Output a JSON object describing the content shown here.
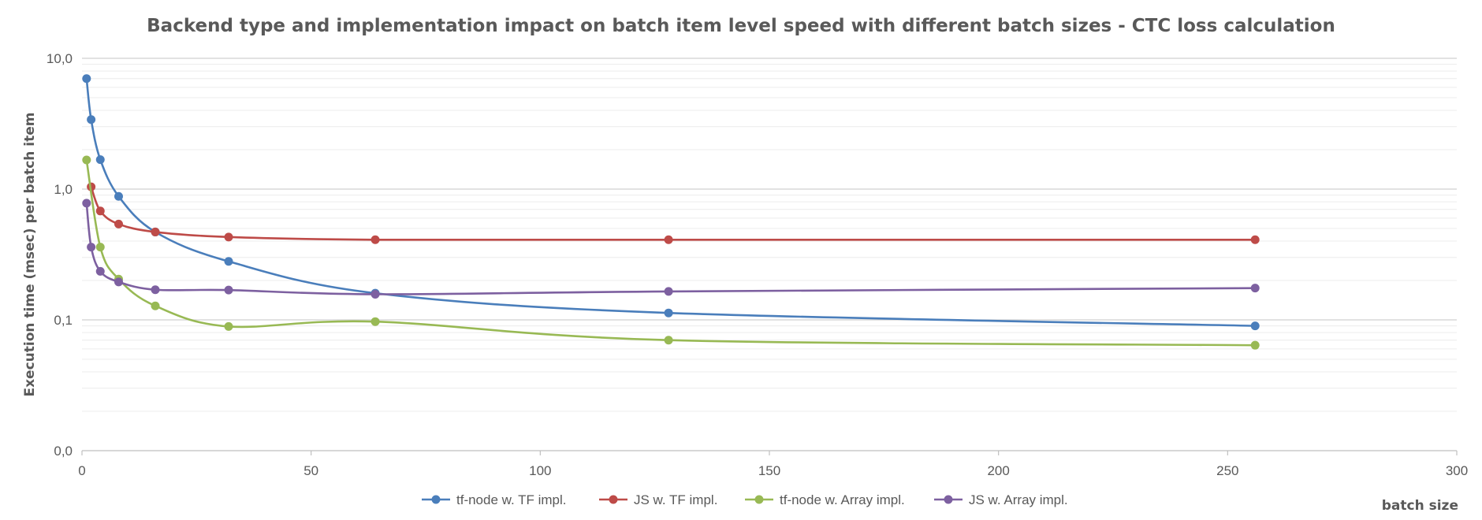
{
  "chart_data": {
    "type": "line",
    "title": "Backend type and implementation impact on batch item level speed with different batch sizes - CTC loss calculation",
    "xlabel": "batch size",
    "ylabel": "Execution time (msec) per batch item",
    "y_scale": "log",
    "xlim": [
      0,
      300
    ],
    "ylim": [
      0.01,
      10
    ],
    "x_ticks": [
      0,
      50,
      100,
      150,
      200,
      250,
      300
    ],
    "x_tick_labels": [
      "0",
      "50",
      "100",
      "150",
      "200",
      "250",
      "300"
    ],
    "y_ticks": [
      0.01,
      0.1,
      1,
      10
    ],
    "y_tick_labels": [
      "0,0",
      "0,1",
      "1,0",
      "10,0"
    ],
    "legend_position": "bottom",
    "smooth": true,
    "series": [
      {
        "name": "tf-node w. TF impl.",
        "color": "#4a7ebb",
        "x": [
          1,
          2,
          4,
          8,
          16,
          32,
          64,
          128,
          256
        ],
        "y": [
          7.0,
          3.4,
          1.68,
          0.88,
          0.47,
          0.28,
          0.16,
          0.113,
          0.09
        ]
      },
      {
        "name": "JS w. TF impl.",
        "color": "#be4b48",
        "x": [
          2,
          4,
          8,
          16,
          32,
          64,
          128,
          256
        ],
        "y": [
          1.04,
          0.68,
          0.54,
          0.47,
          0.43,
          0.41,
          0.41,
          0.41
        ]
      },
      {
        "name": "tf-node w. Array impl.",
        "color": "#98b954",
        "x": [
          1,
          4,
          8,
          16,
          32,
          64,
          128,
          256
        ],
        "y": [
          1.67,
          0.36,
          0.205,
          0.128,
          0.089,
          0.097,
          0.07,
          0.064
        ]
      },
      {
        "name": "JS w. Array impl.",
        "color": "#7d60a0",
        "x": [
          1,
          2,
          4,
          8,
          16,
          32,
          64,
          128,
          256
        ],
        "y": [
          0.78,
          0.36,
          0.235,
          0.195,
          0.17,
          0.169,
          0.157,
          0.165,
          0.175
        ]
      }
    ]
  }
}
